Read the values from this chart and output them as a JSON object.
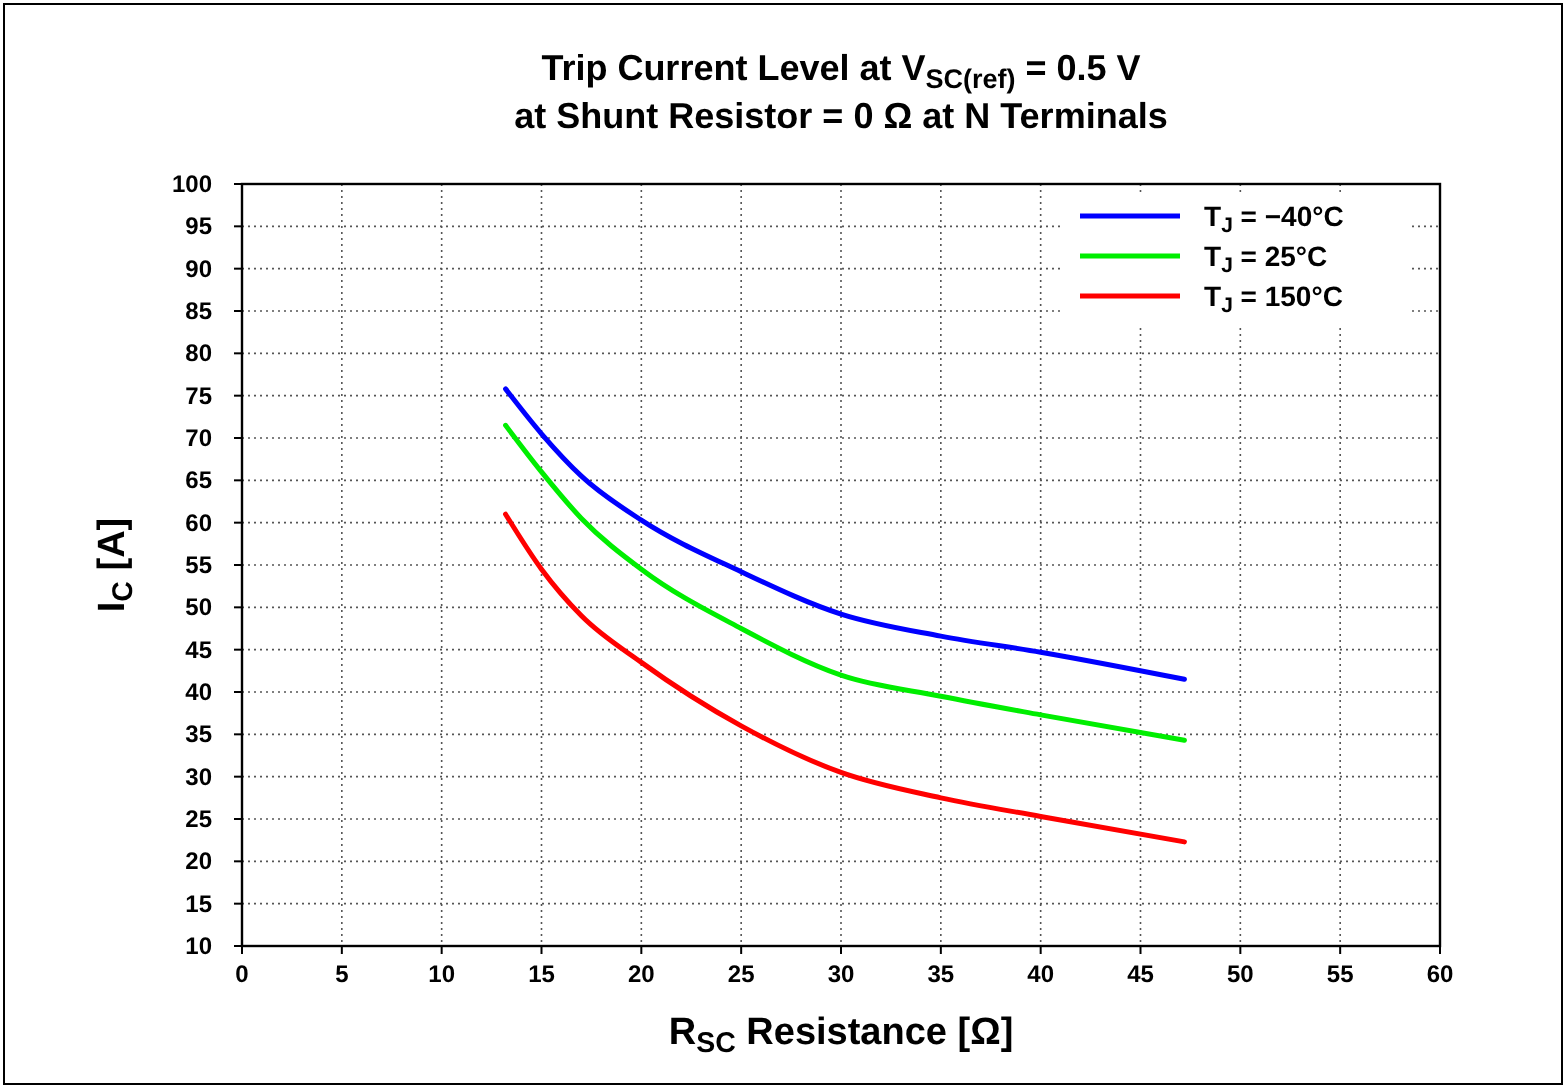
{
  "chart_data": {
    "type": "line",
    "title": "Trip Current Level at V$_{SC(ref)}$ = 0.5 V\nat Shunt Resistor = 0 Ω at N Terminals",
    "xlabel": "R$_{SC}$ Resistance [Ω]",
    "ylabel": "I$_{C}$ [A]",
    "x": [
      13.2,
      15,
      17,
      20,
      25,
      30,
      35,
      40,
      47.2
    ],
    "series": [
      {
        "name": "T$_{J}$ = −40°C",
        "color": "#0000ff",
        "values": [
          75.8,
          70.5,
          65.5,
          60.3,
          54.2,
          49.2,
          46.6,
          44.7,
          41.5
        ]
      },
      {
        "name": "T$_{J}$ = 25°C",
        "color": "#00ee00",
        "values": [
          71.5,
          66,
          60.5,
          54.5,
          47.5,
          42,
          39.5,
          37.3,
          34.3
        ]
      },
      {
        "name": "T$_{J}$ = 150°C",
        "color": "#ff0000",
        "values": [
          61,
          54.5,
          49,
          43.5,
          36,
          30.5,
          27.5,
          25.3,
          22.3
        ]
      }
    ],
    "xlim": [
      0,
      60
    ],
    "xticks": [
      0,
      5,
      10,
      15,
      20,
      25,
      30,
      35,
      40,
      45,
      50,
      55,
      60
    ],
    "ylim": [
      10,
      100
    ],
    "yticks": [
      10,
      15,
      20,
      25,
      30,
      35,
      40,
      45,
      50,
      55,
      60,
      65,
      70,
      75,
      80,
      85,
      90,
      95,
      100
    ],
    "grid": true,
    "legend": "top right",
    "marker": "none",
    "line_style": "solid"
  }
}
